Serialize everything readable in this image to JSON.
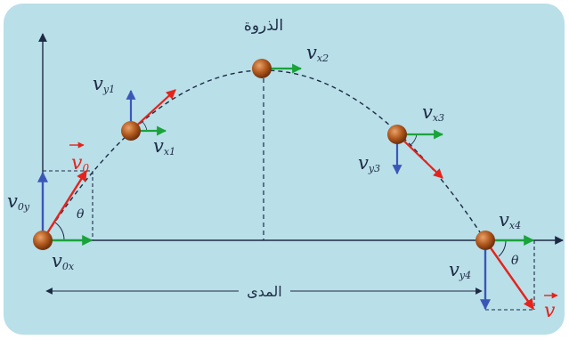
{
  "colors": {
    "background": "#b9dfe9",
    "axis": "#1d2a44",
    "trajectory": "#1d2a44",
    "horizontal_component": "#1aa33a",
    "vertical_component": "#3a57b8",
    "velocity": "#e3241c",
    "ball": "#b35a1f"
  },
  "labels": {
    "peak": "الذروة",
    "range": "المدى",
    "v0_vector": "v",
    "v0_vector_sub": "0",
    "v0y": "v",
    "v0y_sub": "0y",
    "v0x": "v",
    "v0x_sub": "0x",
    "vy1": "v",
    "vy1_sub": "y1",
    "vx1": "v",
    "vx1_sub": "x1",
    "vx2": "v",
    "vx2_sub": "x2",
    "vx3": "v",
    "vx3_sub": "x3",
    "vy3": "v",
    "vy3_sub": "y3",
    "vx4": "v",
    "vx4_sub": "x4",
    "vy4": "v",
    "vy4_sub": "y4",
    "theta_launch": "θ",
    "theta_landing": "θ",
    "v_final": "v"
  }
}
